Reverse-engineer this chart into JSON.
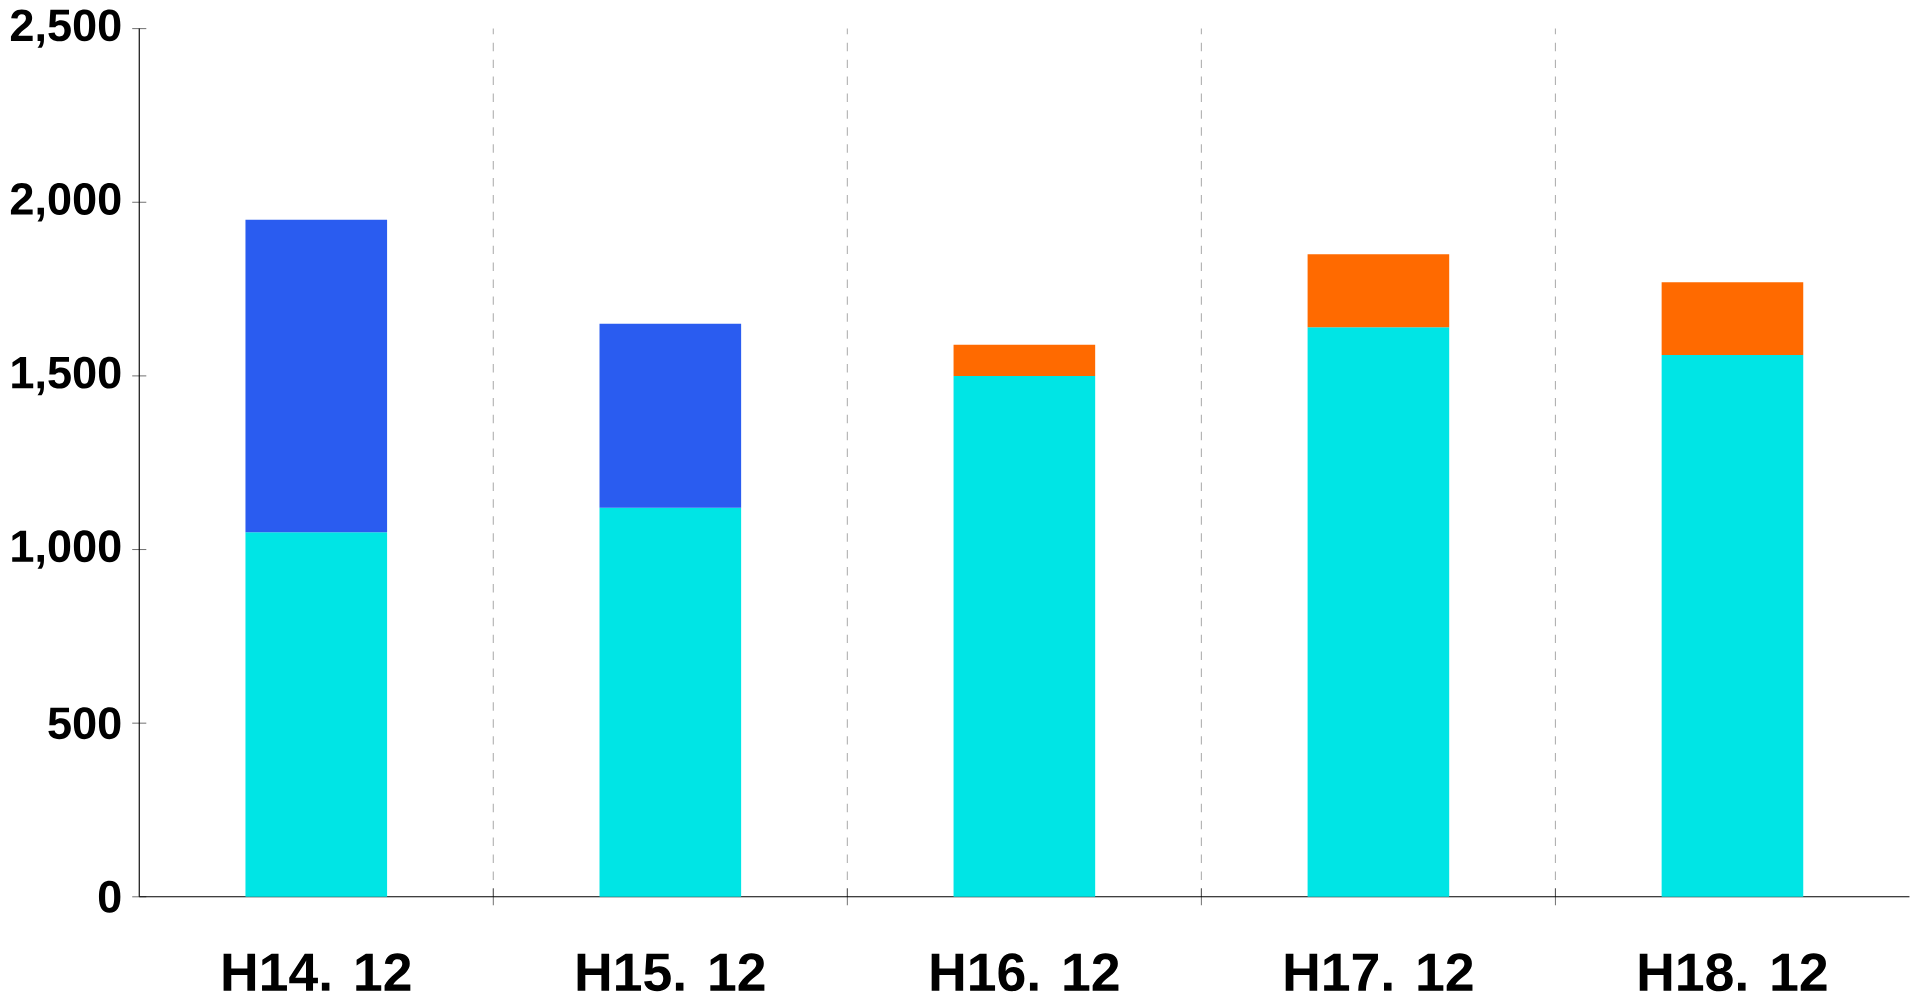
{
  "chart_data": {
    "type": "bar",
    "stacked": true,
    "categories": [
      "H14. 12",
      "H15. 12",
      "H16. 12",
      "H17. 12",
      "H18. 12"
    ],
    "series": [
      {
        "color": "#00e5e5",
        "values": [
          1050,
          1120,
          1500,
          1640,
          1560
        ]
      },
      {
        "color": "#2a5cf0",
        "values": [
          900,
          530,
          null,
          null,
          null
        ]
      },
      {
        "color": "#ff6a00",
        "values": [
          null,
          null,
          90,
          210,
          210
        ]
      }
    ],
    "ylim": [
      0,
      2500
    ],
    "yticks": [
      {
        "value": 0,
        "label": "0"
      },
      {
        "value": 500,
        "label": "500"
      },
      {
        "value": 1000,
        "label": "1,000"
      },
      {
        "value": 1500,
        "label": "1,500"
      },
      {
        "value": 2000,
        "label": "2,000"
      },
      {
        "value": 2500,
        "label": "2,500"
      }
    ],
    "grid": "x"
  }
}
